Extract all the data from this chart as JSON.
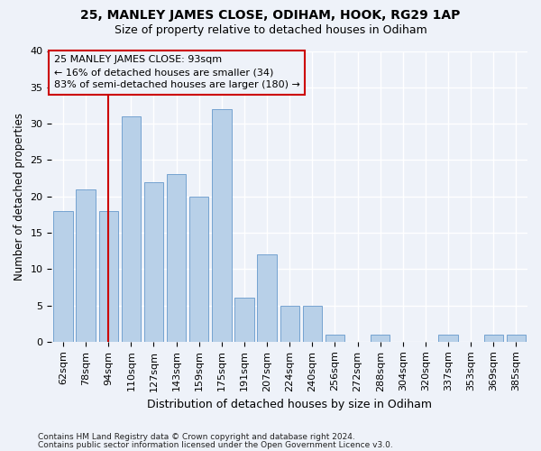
{
  "title1": "25, MANLEY JAMES CLOSE, ODIHAM, HOOK, RG29 1AP",
  "title2": "Size of property relative to detached houses in Odiham",
  "xlabel": "Distribution of detached houses by size in Odiham",
  "ylabel": "Number of detached properties",
  "categories": [
    "62sqm",
    "78sqm",
    "94sqm",
    "110sqm",
    "127sqm",
    "143sqm",
    "159sqm",
    "175sqm",
    "191sqm",
    "207sqm",
    "224sqm",
    "240sqm",
    "256sqm",
    "272sqm",
    "288sqm",
    "304sqm",
    "320sqm",
    "337sqm",
    "353sqm",
    "369sqm",
    "385sqm"
  ],
  "values": [
    18,
    21,
    18,
    31,
    22,
    23,
    20,
    32,
    6,
    12,
    5,
    5,
    1,
    0,
    1,
    0,
    0,
    1,
    0,
    1,
    1
  ],
  "bar_color": "#b8d0e8",
  "bar_edge_color": "#6699cc",
  "highlight_color": "#cc0000",
  "highlight_index": 2,
  "ylim": [
    0,
    40
  ],
  "yticks": [
    0,
    5,
    10,
    15,
    20,
    25,
    30,
    35,
    40
  ],
  "annotation_text": "25 MANLEY JAMES CLOSE: 93sqm\n← 16% of detached houses are smaller (34)\n83% of semi-detached houses are larger (180) →",
  "footnote1": "Contains HM Land Registry data © Crown copyright and database right 2024.",
  "footnote2": "Contains public sector information licensed under the Open Government Licence v3.0.",
  "bg_color": "#eef2f9",
  "plot_bg_color": "#eef2f9",
  "title1_fontsize": 10,
  "title2_fontsize": 9,
  "ylabel_fontsize": 8.5,
  "xlabel_fontsize": 9,
  "tick_fontsize": 8,
  "annot_fontsize": 8
}
